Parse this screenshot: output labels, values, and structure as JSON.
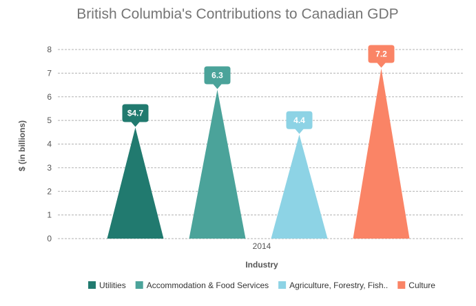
{
  "chart_data": {
    "type": "bar",
    "title": "British Columbia's Contributions to Canadian GDP",
    "xlabel": "Industry",
    "ylabel": "$ (in billions)",
    "categories": [
      "2014"
    ],
    "ylim": [
      0,
      8
    ],
    "yticks": [
      "0",
      "1",
      "2",
      "3",
      "4",
      "5",
      "6",
      "7",
      "8"
    ],
    "grid": true,
    "legend_position": "bottom",
    "series": [
      {
        "name": "Utilities",
        "values": [
          4.7
        ],
        "label": "$4.7",
        "color": "#217A6F"
      },
      {
        "name": "Accommodation & Food Services",
        "values": [
          6.3
        ],
        "label": "6.3",
        "color": "#4BA39A"
      },
      {
        "name": "Agriculture, Forestry, Fish..",
        "values": [
          4.4
        ],
        "label": "4.4",
        "color": "#8DD3E5"
      },
      {
        "name": "Culture",
        "values": [
          7.2
        ],
        "label": "7.2",
        "color": "#FA8466"
      }
    ]
  }
}
